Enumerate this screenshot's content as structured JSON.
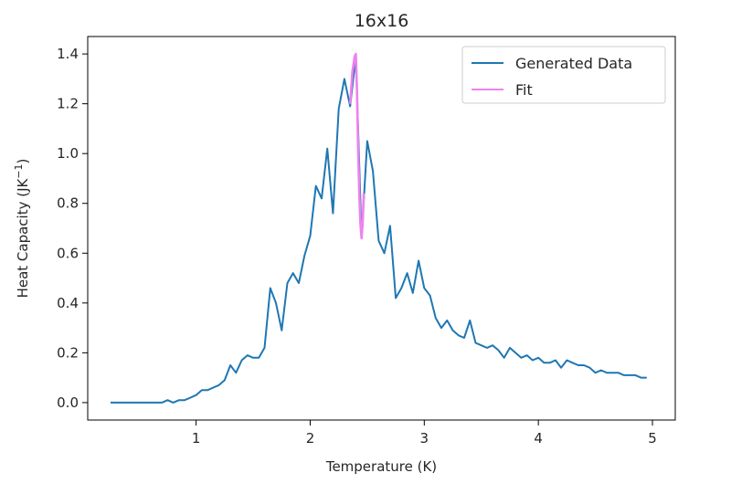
{
  "chart_data": {
    "type": "line",
    "title": "16x16",
    "xlabel": "Temperature (K)",
    "ylabel_main": "Heat Capacity (JK",
    "ylabel_sup": "−1",
    "ylabel_close": ")",
    "xlim": [
      0.05,
      5.2
    ],
    "ylim": [
      -0.07,
      1.47
    ],
    "xticks": [
      1,
      2,
      3,
      4,
      5
    ],
    "yticks": [
      0.0,
      0.2,
      0.4,
      0.6,
      0.8,
      1.0,
      1.2,
      1.4
    ],
    "xtick_labels": [
      "1",
      "2",
      "3",
      "4",
      "5"
    ],
    "ytick_labels": [
      "0.0",
      "0.2",
      "0.4",
      "0.6",
      "0.8",
      "1.0",
      "1.2",
      "1.4"
    ],
    "grid": false,
    "legend_position": "top-right",
    "series": [
      {
        "name": "Generated Data",
        "color": "#1f77b4",
        "x": [
          0.25,
          0.3,
          0.35,
          0.4,
          0.45,
          0.5,
          0.55,
          0.6,
          0.65,
          0.7,
          0.75,
          0.8,
          0.85,
          0.9,
          0.95,
          1.0,
          1.05,
          1.1,
          1.15,
          1.2,
          1.25,
          1.3,
          1.35,
          1.4,
          1.45,
          1.5,
          1.55,
          1.6,
          1.65,
          1.7,
          1.75,
          1.8,
          1.85,
          1.9,
          1.95,
          2.0,
          2.05,
          2.1,
          2.15,
          2.2,
          2.25,
          2.3,
          2.35,
          2.4,
          2.45,
          2.5,
          2.55,
          2.6,
          2.65,
          2.7,
          2.75,
          2.8,
          2.85,
          2.9,
          2.95,
          3.0,
          3.05,
          3.1,
          3.15,
          3.2,
          3.25,
          3.3,
          3.35,
          3.4,
          3.45,
          3.5,
          3.55,
          3.6,
          3.65,
          3.7,
          3.75,
          3.8,
          3.85,
          3.9,
          3.95,
          4.0,
          4.05,
          4.1,
          4.15,
          4.2,
          4.25,
          4.3,
          4.35,
          4.4,
          4.45,
          4.5,
          4.55,
          4.6,
          4.65,
          4.7,
          4.75,
          4.8,
          4.85,
          4.9,
          4.95
        ],
        "y": [
          0.0,
          0.0,
          0.0,
          0.0,
          0.0,
          0.0,
          0.0,
          0.0,
          0.0,
          0.0,
          0.01,
          0.0,
          0.01,
          0.01,
          0.02,
          0.03,
          0.05,
          0.05,
          0.06,
          0.07,
          0.09,
          0.15,
          0.12,
          0.17,
          0.19,
          0.18,
          0.18,
          0.22,
          0.46,
          0.4,
          0.29,
          0.48,
          0.52,
          0.48,
          0.59,
          0.67,
          0.87,
          0.82,
          1.02,
          0.76,
          1.18,
          1.3,
          1.19,
          1.39,
          0.66,
          1.05,
          0.93,
          0.65,
          0.6,
          0.71,
          0.42,
          0.46,
          0.52,
          0.44,
          0.57,
          0.46,
          0.43,
          0.34,
          0.3,
          0.33,
          0.29,
          0.27,
          0.26,
          0.33,
          0.24,
          0.23,
          0.22,
          0.23,
          0.21,
          0.18,
          0.22,
          0.2,
          0.18,
          0.19,
          0.17,
          0.18,
          0.16,
          0.16,
          0.17,
          0.14,
          0.17,
          0.16,
          0.15,
          0.15,
          0.14,
          0.12,
          0.13,
          0.12,
          0.12,
          0.12,
          0.11,
          0.11,
          0.11,
          0.1,
          0.1
        ]
      },
      {
        "name": "Fit",
        "color": "#ee82ee",
        "x": [
          2.35,
          2.37,
          2.39,
          2.4,
          2.41,
          2.42,
          2.43,
          2.44,
          2.45,
          2.46,
          2.47
        ],
        "y": [
          1.2,
          1.33,
          1.39,
          1.4,
          1.25,
          1.02,
          0.84,
          0.72,
          0.66,
          0.72,
          0.84
        ]
      }
    ]
  }
}
